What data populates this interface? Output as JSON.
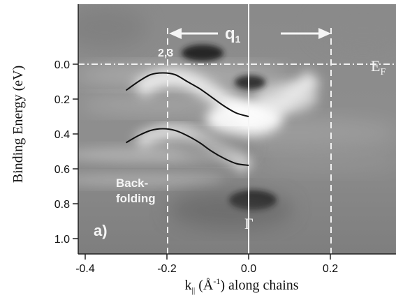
{
  "chart_data": {
    "type": "heatmap",
    "xlabel_main": "k",
    "xlabel_sub": "||",
    "xlabel_unit": " (Å",
    "xlabel_exp": "-1",
    "xlabel_rest": ") along chains",
    "ylabel": "Binding Energy (eV)",
    "xlim": [
      -0.44,
      0.37
    ],
    "ylim": [
      -0.3,
      1.07
    ],
    "y_inverted": true,
    "x_ticks": [
      -0.4,
      -0.2,
      0.0,
      0.2
    ],
    "x_tick_labels": [
      "-0.4",
      "-0.2",
      "0.0",
      "0.2"
    ],
    "y_ticks": [
      0.0,
      0.2,
      0.4,
      0.6,
      0.8,
      1.0
    ],
    "y_tick_labels": [
      "0.0",
      "0.2",
      "0.4",
      "0.6",
      "0.8",
      "1.0"
    ],
    "colormap": "grayscale",
    "annotations": {
      "fermi_label_main": "E",
      "fermi_label_sub": "F",
      "fermi_level": 0.0,
      "q1_label_main": "q",
      "q1_label_sub": "1",
      "q1_range": [
        -0.22,
        0.22
      ],
      "point_label": "2,3",
      "backfolding_line1": "Back-",
      "backfolding_line2": "folding",
      "gamma_label": "Γ",
      "panel_label": "a)",
      "dashed_vertical_x": [
        -0.22,
        0.22
      ],
      "gamma_vertical_x": 0.0
    },
    "series": [
      {
        "x": [
          -0.3,
          -0.27,
          -0.24,
          -0.21,
          -0.18,
          -0.15,
          -0.12,
          -0.09,
          -0.06,
          -0.03,
          0.0
        ],
        "y": [
          0.15,
          0.1,
          0.06,
          0.05,
          0.06,
          0.1,
          0.14,
          0.19,
          0.24,
          0.28,
          0.3
        ]
      },
      {
        "x": [
          -0.3,
          -0.27,
          -0.24,
          -0.21,
          -0.18,
          -0.15,
          -0.12,
          -0.09,
          -0.06,
          -0.03,
          0.0
        ],
        "y": [
          0.45,
          0.41,
          0.38,
          0.37,
          0.38,
          0.41,
          0.45,
          0.5,
          0.54,
          0.57,
          0.58
        ]
      }
    ]
  }
}
